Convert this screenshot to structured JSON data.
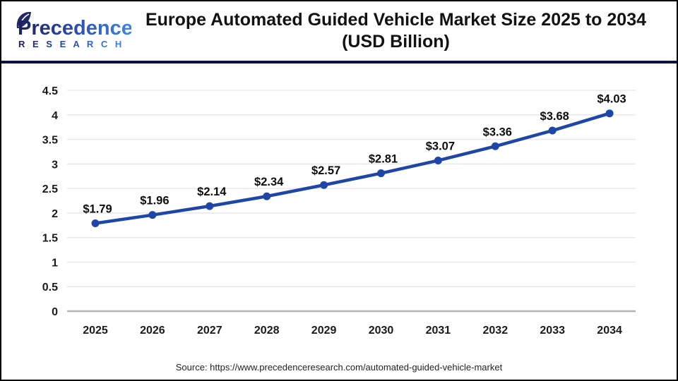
{
  "logo": {
    "name": "Precedence",
    "sub": "R E S E A R C H"
  },
  "header": {
    "title_line1": "Europe Automated Guided Vehicle Market Size 2025 to 2034",
    "title_line2": "(USD Billion)"
  },
  "chart_data": {
    "type": "line",
    "title": "Europe Automated Guided Vehicle Market Size 2025 to 2034 (USD Billion)",
    "x": [
      "2025",
      "2026",
      "2027",
      "2028",
      "2029",
      "2030",
      "2031",
      "2032",
      "2033",
      "2034"
    ],
    "series": [
      {
        "name": "Market Size (USD Billion)",
        "values": [
          1.79,
          1.96,
          2.14,
          2.34,
          2.57,
          2.81,
          3.07,
          3.36,
          3.68,
          4.03
        ]
      }
    ],
    "point_labels": [
      "$1.79",
      "$1.96",
      "$2.14",
      "$2.34",
      "$2.57",
      "$2.81",
      "$3.07",
      "$3.36",
      "$3.68",
      "$4.03"
    ],
    "ylim": [
      0,
      4.5
    ],
    "yticks": [
      "0",
      "0.5",
      "1",
      "1.5",
      "2",
      "2.5",
      "3",
      "3.5",
      "4",
      "4.5"
    ],
    "grid": true,
    "legend_position": "none",
    "line_color": "#1e46a8",
    "grid_color": "#e8e8e8",
    "axis_color": "#b3b3b3"
  },
  "footer": {
    "source": "Source: https://www.precedenceresearch.com/automated-guided-vehicle-market"
  }
}
